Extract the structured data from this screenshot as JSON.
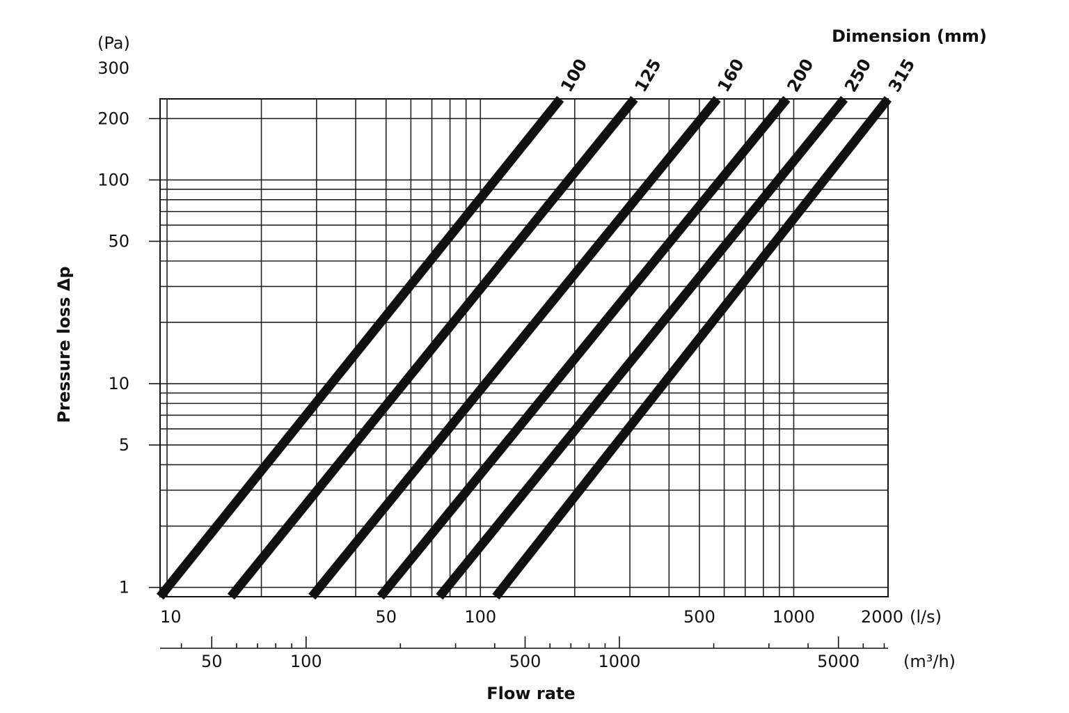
{
  "chart_data": {
    "type": "line",
    "title": "",
    "legend_title": "Dimension (mm)",
    "ylabel": "Pressure loss Δp",
    "y_unit": "(Pa)",
    "xlabel": "Flow rate",
    "x_unit": "(l/s)",
    "x2_unit": "(m³/h)",
    "y_scale": "log",
    "x_scale": "log",
    "grid": true,
    "ylim": [
      0.9,
      250
    ],
    "xlim": [
      9.5,
      2000
    ],
    "x2lim": [
      34.2,
      7200
    ],
    "y_tick_labels": [
      {
        "value": 1,
        "label": "1"
      },
      {
        "value": 5,
        "label": "5"
      },
      {
        "value": 10,
        "label": "10"
      },
      {
        "value": 50,
        "label": "50"
      },
      {
        "value": 100,
        "label": "100"
      },
      {
        "value": 200,
        "label": "200"
      },
      {
        "value": 300,
        "label": "300"
      }
    ],
    "x_tick_labels": [
      {
        "value": 10,
        "label": "10"
      },
      {
        "value": 50,
        "label": "50"
      },
      {
        "value": 100,
        "label": "100"
      },
      {
        "value": 500,
        "label": "500"
      },
      {
        "value": 1000,
        "label": "1000"
      },
      {
        "value": 2000,
        "label": "2000"
      }
    ],
    "x2_tick_labels": [
      {
        "value": 50,
        "label": "50"
      },
      {
        "value": 100,
        "label": "100"
      },
      {
        "value": 500,
        "label": "500"
      },
      {
        "value": 1000,
        "label": "1000"
      },
      {
        "value": 5000,
        "label": "5000"
      }
    ],
    "x2_minor_ticks": [
      40,
      60,
      70,
      80,
      90,
      200,
      300,
      400,
      600,
      700,
      800,
      900,
      2000,
      3000,
      4000,
      6000,
      7000
    ],
    "x_gridlines": [
      10,
      20,
      30,
      40,
      50,
      60,
      70,
      80,
      90,
      100,
      200,
      300,
      400,
      500,
      600,
      700,
      800,
      900,
      1000,
      2000
    ],
    "y_gridlines": [
      0.9,
      1,
      2,
      3,
      4,
      5,
      6,
      7,
      8,
      9,
      10,
      20,
      30,
      40,
      50,
      60,
      70,
      80,
      90,
      100,
      200,
      250
    ],
    "series": [
      {
        "name": "100",
        "points": [
          [
            9.5,
            0.9
          ],
          [
            180,
            250
          ]
        ]
      },
      {
        "name": "125",
        "points": [
          [
            16,
            0.9
          ],
          [
            310,
            250
          ]
        ]
      },
      {
        "name": "160",
        "points": [
          [
            29,
            0.9
          ],
          [
            570,
            250
          ]
        ]
      },
      {
        "name": "200",
        "points": [
          [
            48,
            0.9
          ],
          [
            950,
            250
          ]
        ]
      },
      {
        "name": "250",
        "points": [
          [
            74,
            0.9
          ],
          [
            1450,
            250
          ]
        ]
      },
      {
        "name": "315",
        "points": [
          [
            112,
            0.9
          ],
          [
            2000,
            250
          ]
        ]
      }
    ]
  }
}
